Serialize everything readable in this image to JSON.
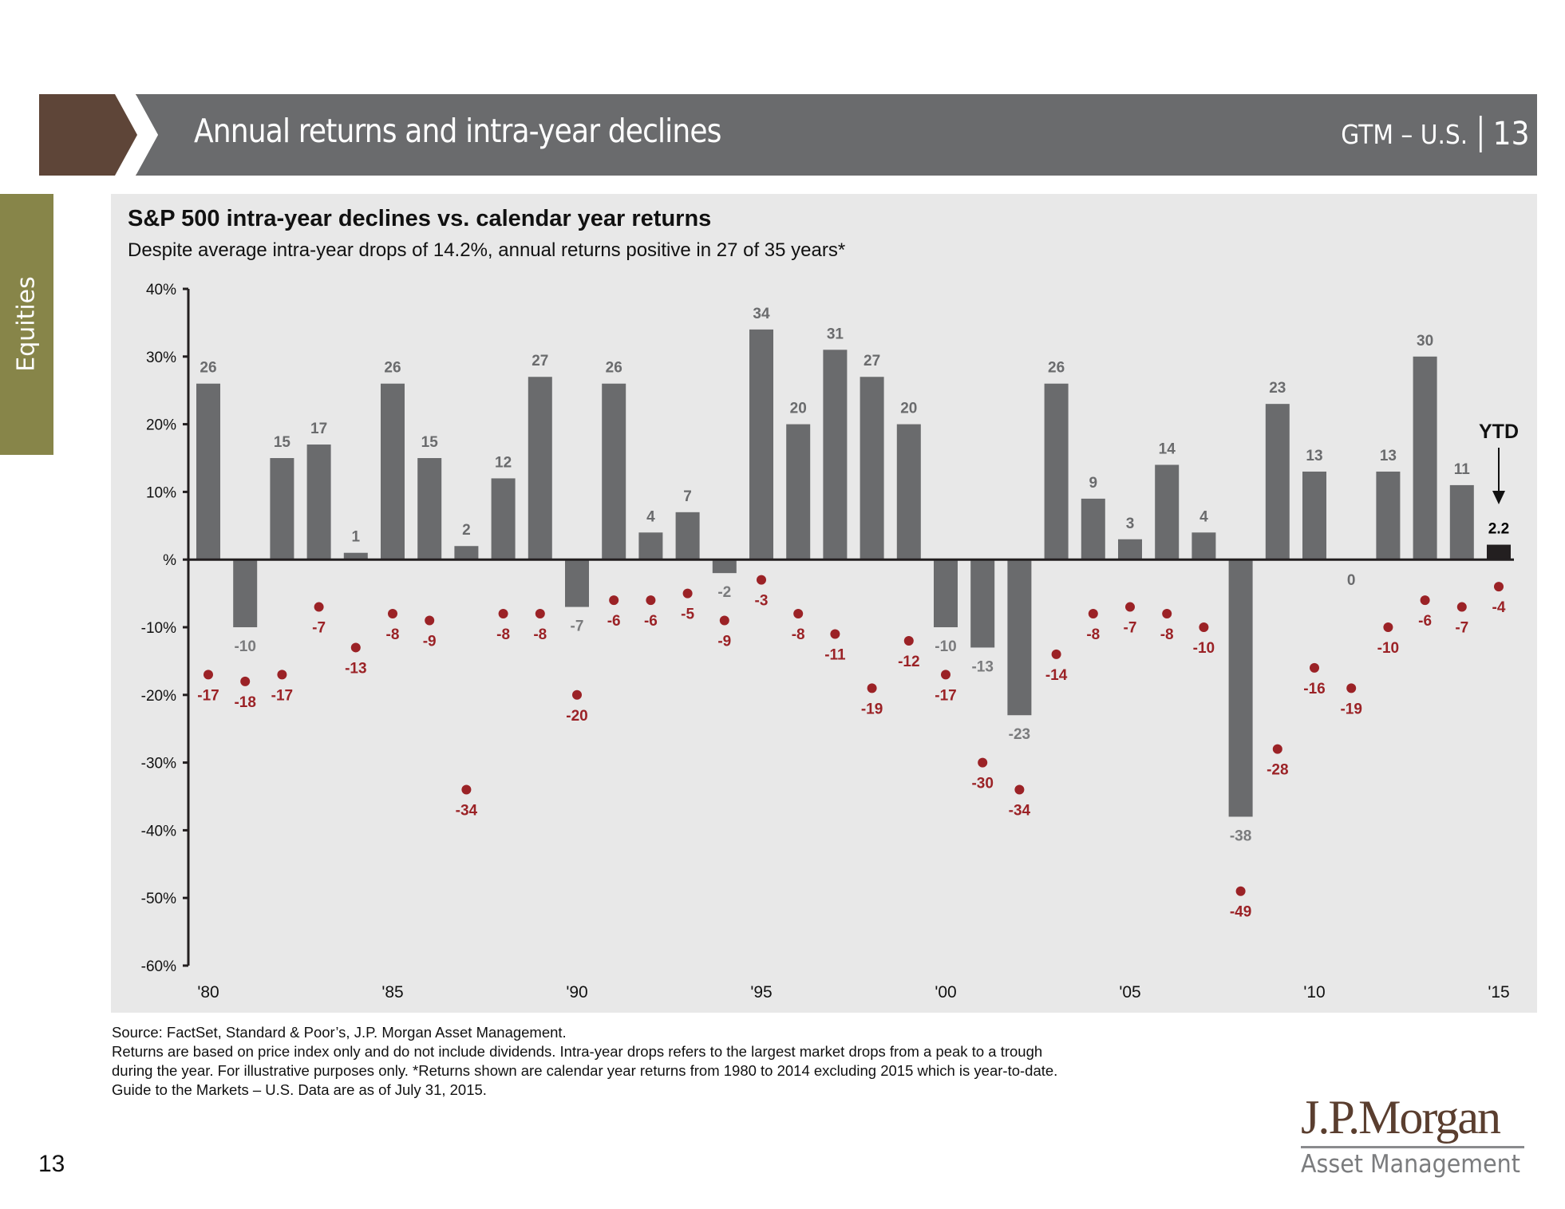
{
  "header": {
    "title": "Annual returns and intra-year declines",
    "guide": "GTM – U.S.",
    "page": "13",
    "colors": {
      "accent_brown": "#5e4538",
      "bar_gray": "#6a6b6d"
    }
  },
  "side_tab": {
    "label": "Equities",
    "color": "#878549"
  },
  "chart_title": "S&P 500 intra-year declines vs. calendar year returns",
  "chart_subtitle": "Despite average intra-year drops of 14.2%, annual returns positive in 27 of 35 years*",
  "chart_data": {
    "type": "bar",
    "title": "S&P 500 intra-year declines vs. calendar year returns",
    "subtitle": "Despite average intra-year drops of 14.2%, annual returns positive in 27 of 35 years*",
    "xlabel": "",
    "ylabel": "",
    "ylim": [
      -60,
      40
    ],
    "yticks": [
      40,
      30,
      20,
      10,
      0,
      -10,
      -20,
      -30,
      -40,
      -50,
      -60
    ],
    "ytick_labels": [
      "40%",
      "30%",
      "20%",
      "10%",
      "%",
      "-10%",
      "-20%",
      "-30%",
      "-40%",
      "-50%",
      "-60%"
    ],
    "xtick_labels": [
      {
        "year": 1980,
        "label": "'80"
      },
      {
        "year": 1985,
        "label": "'85"
      },
      {
        "year": 1990,
        "label": "'90"
      },
      {
        "year": 1995,
        "label": "'95"
      },
      {
        "year": 2000,
        "label": "'00"
      },
      {
        "year": 2005,
        "label": "'05"
      },
      {
        "year": 2010,
        "label": "'10"
      },
      {
        "year": 2015,
        "label": "'15"
      }
    ],
    "x": [
      1980,
      1981,
      1982,
      1983,
      1984,
      1985,
      1986,
      1987,
      1988,
      1989,
      1990,
      1991,
      1992,
      1993,
      1994,
      1995,
      1996,
      1997,
      1998,
      1999,
      2000,
      2001,
      2002,
      2003,
      2004,
      2005,
      2006,
      2007,
      2008,
      2009,
      2010,
      2011,
      2012,
      2013,
      2014,
      2015
    ],
    "grid": false,
    "series": [
      {
        "name": "Calendar year return",
        "type": "bar",
        "color": "#6a6b6d",
        "values": [
          26,
          -10,
          15,
          17,
          1,
          26,
          15,
          2,
          12,
          27,
          -7,
          26,
          4,
          7,
          -2,
          34,
          20,
          31,
          27,
          20,
          -10,
          -13,
          -23,
          26,
          9,
          3,
          14,
          4,
          -38,
          23,
          13,
          0,
          13,
          30,
          11,
          2.2
        ],
        "labels": [
          "26",
          "-10",
          "15",
          "17",
          "1",
          "26",
          "15",
          "2",
          "12",
          "27",
          "-7",
          "26",
          "4",
          "7",
          "-2",
          "34",
          "20",
          "31",
          "27",
          "20",
          "-10",
          "-13",
          "-23",
          "26",
          "9",
          "3",
          "14",
          "4",
          "-38",
          "23",
          "13",
          "0",
          "13",
          "30",
          "11",
          "2.2"
        ]
      },
      {
        "name": "Intra-year decline",
        "type": "scatter",
        "color": "#9b2226",
        "values": [
          -17,
          -18,
          -17,
          -7,
          -13,
          -8,
          -9,
          -34,
          -8,
          -8,
          -20,
          -6,
          -6,
          -5,
          -9,
          -3,
          -8,
          -11,
          -19,
          -12,
          -17,
          -30,
          -34,
          -14,
          -8,
          -7,
          -8,
          -10,
          -49,
          -28,
          -16,
          -19,
          -10,
          -6,
          -7,
          -4
        ],
        "labels": [
          "-17",
          "-18",
          "-17",
          "-7",
          "-13",
          "-8",
          "-9",
          "-34",
          "-8",
          "-8",
          "-20",
          "-6",
          "-6",
          "-5",
          "-9",
          "-3",
          "-8",
          "-11",
          "-19",
          "-12",
          "-17",
          "-30",
          "-34",
          "-14",
          "-8",
          "-7",
          "-8",
          "-10",
          "-49",
          "-28",
          "-16",
          "-19",
          "-10",
          "-6",
          "-7",
          "-4"
        ]
      }
    ],
    "highlight": {
      "year": 2015,
      "color": "#231f20",
      "label_color": "#000000"
    },
    "annotations": [
      {
        "text": "YTD",
        "target_year": 2015,
        "arrow": "down"
      }
    ]
  },
  "footnotes": [
    "Source: FactSet, Standard & Poor’s, J.P. Morgan Asset Management.",
    "Returns are based on price index only and do not include dividends. Intra-year drops refers to the largest market drops from a peak to a trough",
    "during the year. For illustrative purposes only.  *Returns shown are calendar year returns from 1980 to 2014 excluding 2015 which is year-to-date.",
    "Guide to the Markets – U.S. Data are as of July 31, 2015."
  ],
  "page_number": "13",
  "logo": {
    "main": "J.P.Morgan",
    "sub": "Asset Management"
  }
}
